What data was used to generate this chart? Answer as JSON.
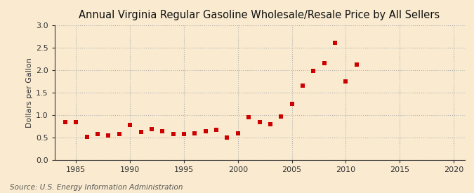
{
  "title": "Annual Virginia Regular Gasoline Wholesale/Resale Price by All Sellers",
  "ylabel": "Dollars per Gallon",
  "source": "Source: U.S. Energy Information Administration",
  "background_color": "#faebd0",
  "plot_bg_color": "#faebd0",
  "marker_color": "#cc0000",
  "xlim": [
    1983,
    2021
  ],
  "ylim": [
    0.0,
    3.0
  ],
  "xticks": [
    1985,
    1990,
    1995,
    2000,
    2005,
    2010,
    2015,
    2020
  ],
  "yticks": [
    0.0,
    0.5,
    1.0,
    1.5,
    2.0,
    2.5,
    3.0
  ],
  "years": [
    1984,
    1985,
    1986,
    1987,
    1988,
    1989,
    1990,
    1991,
    1992,
    1993,
    1994,
    1995,
    1996,
    1997,
    1998,
    1999,
    2000,
    2001,
    2002,
    2003,
    2004,
    2005,
    2006,
    2007,
    2008,
    2009,
    2010,
    2011
  ],
  "values": [
    0.84,
    0.84,
    0.52,
    0.58,
    0.55,
    0.58,
    0.78,
    0.63,
    0.69,
    0.65,
    0.58,
    0.58,
    0.6,
    0.65,
    0.67,
    0.5,
    0.6,
    0.95,
    0.84,
    0.8,
    0.97,
    1.25,
    1.65,
    1.98,
    2.15,
    2.6,
    1.75,
    2.12
  ],
  "grid_color": "#b0b0b0",
  "spine_color": "#333333",
  "tick_color": "#333333",
  "title_fontsize": 10.5,
  "label_fontsize": 8,
  "tick_fontsize": 8,
  "source_fontsize": 7.5,
  "marker_size": 16
}
